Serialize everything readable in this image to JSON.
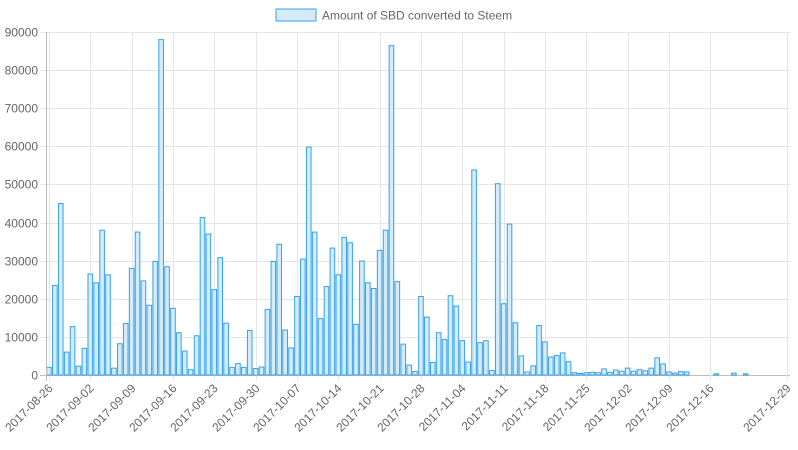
{
  "chart_data": {
    "type": "bar",
    "title": "",
    "xlabel": "",
    "ylabel": "",
    "legend": {
      "position": "top",
      "entries": [
        "Amount of SBD converted to Steem"
      ]
    },
    "grid": true,
    "ylim": [
      0,
      90000
    ],
    "y_ticks": [
      0,
      10000,
      20000,
      30000,
      40000,
      50000,
      60000,
      70000,
      80000,
      90000
    ],
    "x_tick_labels": [
      "2017-08-26",
      "2017-09-02",
      "2017-09-09",
      "2017-09-16",
      "2017-09-23",
      "2017-09-30",
      "2017-10-07",
      "2017-10-14",
      "2017-10-21",
      "2017-10-28",
      "2017-11-04",
      "2017-11-11",
      "2017-11-18",
      "2017-11-25",
      "2017-12-02",
      "2017-12-09",
      "2017-12-16",
      "2017-12-29"
    ],
    "x_start": "2017-08-26",
    "x_end": "2017-12-29",
    "series": [
      {
        "name": "Amount of SBD converted to Steem",
        "color": "#36a2eb",
        "fill": "#d6ebf8",
        "values": [
          2000,
          23500,
          45000,
          6000,
          12700,
          2300,
          7000,
          26500,
          24200,
          38000,
          26300,
          1800,
          8200,
          13500,
          28000,
          37500,
          24700,
          18300,
          29800,
          88000,
          28400,
          17500,
          11100,
          6300,
          1400,
          10300,
          41300,
          37000,
          22400,
          30800,
          13600,
          2000,
          3000,
          2000,
          11700,
          1700,
          2100,
          17200,
          29800,
          34300,
          11800,
          7100,
          20600,
          30400,
          59800,
          37500,
          14800,
          23200,
          33300,
          26300,
          36100,
          34700,
          13300,
          29900,
          24200,
          22700,
          32700,
          38000,
          86400,
          24500,
          8100,
          2600,
          900,
          20600,
          15200,
          3300,
          11100,
          9300,
          20800,
          18100,
          9000,
          3400,
          53800,
          8500,
          9000,
          1200,
          50200,
          18700,
          39600,
          13700,
          5000,
          800,
          2400,
          13000,
          8700,
          4700,
          5100,
          5800,
          3500,
          600,
          400,
          600,
          700,
          600,
          1600,
          700,
          1300,
          1000,
          1800,
          1000,
          1400,
          1100,
          1800,
          4500,
          2900,
          800,
          500,
          900,
          800,
          0,
          0,
          0,
          0,
          300,
          0,
          0,
          500,
          0,
          300,
          0,
          0,
          0,
          0,
          0,
          0,
          0,
          0,
          0
        ]
      }
    ]
  }
}
